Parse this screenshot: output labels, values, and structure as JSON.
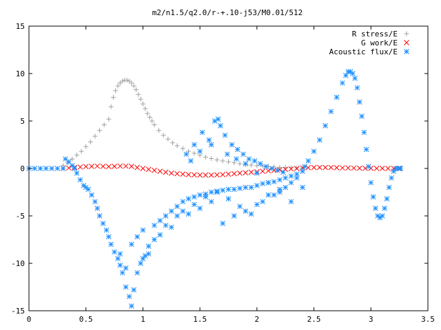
{
  "chart_data": {
    "type": "scatter",
    "title": "m2/n1.5/q2.0/r-+.10-j53/M0.01/512",
    "xlabel": "",
    "ylabel": "",
    "xlim": [
      0,
      3.5
    ],
    "ylim": [
      -15,
      15
    ],
    "xticks": [
      "0",
      "0.5",
      "1",
      "1.5",
      "2",
      "2.5",
      "3",
      "3.5"
    ],
    "yticks": [
      "-15",
      "-10",
      "-5",
      "0",
      "5",
      "10",
      "15"
    ],
    "grid": false,
    "legend_position": "top-right",
    "series": [
      {
        "name": "R stress/E",
        "marker": "plus",
        "color": "#a0a0a0",
        "x": [
          0.3,
          0.34,
          0.38,
          0.42,
          0.46,
          0.5,
          0.54,
          0.58,
          0.62,
          0.66,
          0.7,
          0.72,
          0.74,
          0.76,
          0.78,
          0.8,
          0.82,
          0.84,
          0.86,
          0.88,
          0.9,
          0.92,
          0.94,
          0.96,
          0.98,
          1.0,
          1.02,
          1.04,
          1.06,
          1.08,
          1.1,
          1.14,
          1.18,
          1.22,
          1.26,
          1.3,
          1.35,
          1.4,
          1.45,
          1.5,
          1.55,
          1.6,
          1.65,
          1.7,
          1.75,
          1.8,
          1.85,
          1.9,
          1.95,
          2.0,
          2.05,
          2.1,
          2.15,
          2.2,
          2.25,
          2.3,
          2.35,
          2.4
        ],
        "y": [
          0.3,
          0.6,
          1.0,
          1.4,
          1.8,
          2.3,
          2.8,
          3.4,
          4.0,
          4.6,
          5.2,
          6.5,
          7.5,
          8.2,
          8.7,
          9.0,
          9.2,
          9.3,
          9.3,
          9.2,
          9.0,
          8.7,
          8.3,
          7.8,
          7.3,
          6.8,
          6.3,
          5.8,
          5.4,
          5.0,
          4.6,
          4.0,
          3.5,
          3.1,
          2.7,
          2.4,
          2.1,
          1.8,
          1.6,
          1.4,
          1.2,
          1.05,
          0.9,
          0.8,
          0.7,
          0.6,
          0.5,
          0.4,
          0.35,
          0.3,
          0.25,
          0.2,
          0.15,
          0.12,
          0.1,
          0.08,
          0.05,
          0.03
        ]
      },
      {
        "name": "G work/E",
        "marker": "cross",
        "color": "#ff0000",
        "x": [
          0.3,
          0.35,
          0.4,
          0.45,
          0.5,
          0.55,
          0.6,
          0.65,
          0.7,
          0.75,
          0.8,
          0.85,
          0.9,
          0.95,
          1.0,
          1.05,
          1.1,
          1.15,
          1.2,
          1.25,
          1.3,
          1.35,
          1.4,
          1.45,
          1.5,
          1.55,
          1.6,
          1.65,
          1.7,
          1.75,
          1.8,
          1.85,
          1.9,
          1.95,
          2.0,
          2.05,
          2.1,
          2.15,
          2.2,
          2.25,
          2.3,
          2.35,
          2.4,
          2.45,
          2.5,
          2.55,
          2.6,
          2.65,
          2.7,
          2.75,
          2.8,
          2.85,
          2.9,
          2.95,
          3.0,
          3.05,
          3.1,
          3.15,
          3.2,
          3.25
        ],
        "y": [
          0.0,
          0.05,
          0.1,
          0.15,
          0.2,
          0.22,
          0.25,
          0.22,
          0.2,
          0.22,
          0.25,
          0.25,
          0.22,
          0.1,
          0.0,
          -0.1,
          -0.2,
          -0.3,
          -0.4,
          -0.5,
          -0.55,
          -0.6,
          -0.65,
          -0.68,
          -0.7,
          -0.7,
          -0.7,
          -0.68,
          -0.65,
          -0.6,
          -0.55,
          -0.5,
          -0.45,
          -0.4,
          -0.35,
          -0.3,
          -0.25,
          -0.2,
          -0.15,
          -0.1,
          -0.05,
          0.0,
          0.05,
          0.08,
          0.1,
          0.1,
          0.1,
          0.1,
          0.08,
          0.06,
          0.05,
          0.04,
          0.03,
          0.02,
          0.02,
          0.01,
          0.01,
          0.0,
          0.0,
          0.0
        ]
      },
      {
        "name": "Acoustic flux/E",
        "marker": "star",
        "color": "#1e90ff",
        "x": [
          0.0,
          0.05,
          0.1,
          0.15,
          0.2,
          0.25,
          0.3,
          0.32,
          0.35,
          0.38,
          0.4,
          0.42,
          0.45,
          0.48,
          0.5,
          0.52,
          0.55,
          0.58,
          0.6,
          0.62,
          0.65,
          0.68,
          0.7,
          0.72,
          0.75,
          0.78,
          0.8,
          0.82,
          0.85,
          0.88,
          0.9,
          0.92,
          0.95,
          0.98,
          1.0,
          1.02,
          1.05,
          0.8,
          0.85,
          0.9,
          0.95,
          1.0,
          1.1,
          1.15,
          1.2,
          1.25,
          1.3,
          1.35,
          1.4,
          1.45,
          1.5,
          1.55,
          1.6,
          1.65,
          1.7,
          1.75,
          1.8,
          1.85,
          1.9,
          1.95,
          2.0,
          2.05,
          2.1,
          2.15,
          2.2,
          2.25,
          2.3,
          2.35,
          2.4,
          1.1,
          1.2,
          1.3,
          1.4,
          1.5,
          1.6,
          1.7,
          1.8,
          1.9,
          2.0,
          2.1,
          2.2,
          2.3,
          1.05,
          1.15,
          1.25,
          1.35,
          1.45,
          1.55,
          1.65,
          1.75,
          1.85,
          1.95,
          2.05,
          2.15,
          2.25,
          2.35,
          1.38,
          1.45,
          1.52,
          1.58,
          1.63,
          1.68,
          1.72,
          1.78,
          1.83,
          1.88,
          1.93,
          1.98,
          2.03,
          2.08,
          2.13,
          2.18,
          2.23,
          1.42,
          1.5,
          1.6,
          1.66,
          1.74,
          1.82,
          1.9,
          2.0,
          2.1,
          2.2,
          2.3,
          2.4,
          2.42,
          2.45,
          2.5,
          2.55,
          2.6,
          2.65,
          2.7,
          2.75,
          2.78,
          2.8,
          2.82,
          2.84,
          2.86,
          2.88,
          2.9,
          2.92,
          2.94,
          2.96,
          2.98,
          3.0,
          3.02,
          3.04,
          3.06,
          3.08,
          3.1,
          3.12,
          3.14,
          3.16,
          3.18,
          3.2,
          3.22,
          3.24,
          3.26
        ],
        "y": [
          0,
          0,
          0,
          0,
          0,
          0,
          0,
          1.0,
          0.7,
          0.3,
          0.0,
          -0.5,
          -1.2,
          -1.8,
          -2.0,
          -2.2,
          -2.8,
          -3.5,
          -4.2,
          -5.0,
          -5.8,
          -6.5,
          -7.2,
          -8.0,
          -8.8,
          -9.5,
          -10.2,
          -11.0,
          -12.5,
          -13.5,
          -14.5,
          -12.8,
          -11.0,
          -10.0,
          -9.5,
          -9.2,
          -9.0,
          -9.0,
          -10.5,
          -8.0,
          -7.2,
          -6.5,
          -6.0,
          -5.5,
          -5.0,
          -4.5,
          -4.0,
          -3.5,
          -3.2,
          -3.0,
          -2.8,
          -2.7,
          -2.5,
          -2.4,
          -2.3,
          -2.2,
          -2.2,
          -2.1,
          -2.0,
          -2.0,
          -1.8,
          -1.6,
          -1.5,
          -1.4,
          -1.2,
          -1.0,
          -0.8,
          -0.6,
          -0.3,
          -7.5,
          -6.0,
          -5.0,
          -4.8,
          -4.2,
          -3.5,
          -5.8,
          -5.0,
          -4.5,
          -3.8,
          -2.8,
          -2.2,
          -1.5,
          -8.2,
          -7.0,
          -6.2,
          -4.5,
          -3.8,
          -3.0,
          -2.5,
          -3.2,
          -4.0,
          -4.8,
          -3.5,
          -2.8,
          -2.0,
          -1.0,
          1.5,
          2.5,
          3.8,
          3.0,
          5.0,
          4.5,
          3.5,
          2.5,
          2.0,
          1.5,
          1.0,
          0.8,
          0.5,
          0.2,
          0.0,
          -0.2,
          -0.4,
          0.8,
          1.8,
          2.5,
          5.2,
          1.5,
          1.0,
          0.5,
          -0.5,
          -1.5,
          -2.5,
          -3.5,
          -2.0,
          0.2,
          0.8,
          1.8,
          3.0,
          4.5,
          6.0,
          7.5,
          9.0,
          9.8,
          10.2,
          10.2,
          10.0,
          9.5,
          8.5,
          7.0,
          5.5,
          3.8,
          2.0,
          0.2,
          -1.5,
          -3.0,
          -4.2,
          -5.0,
          -5.2,
          -5.0,
          -4.2,
          -3.2,
          -2.0,
          -1.0,
          -0.3,
          0.0,
          0.0,
          0.0
        ]
      }
    ]
  }
}
